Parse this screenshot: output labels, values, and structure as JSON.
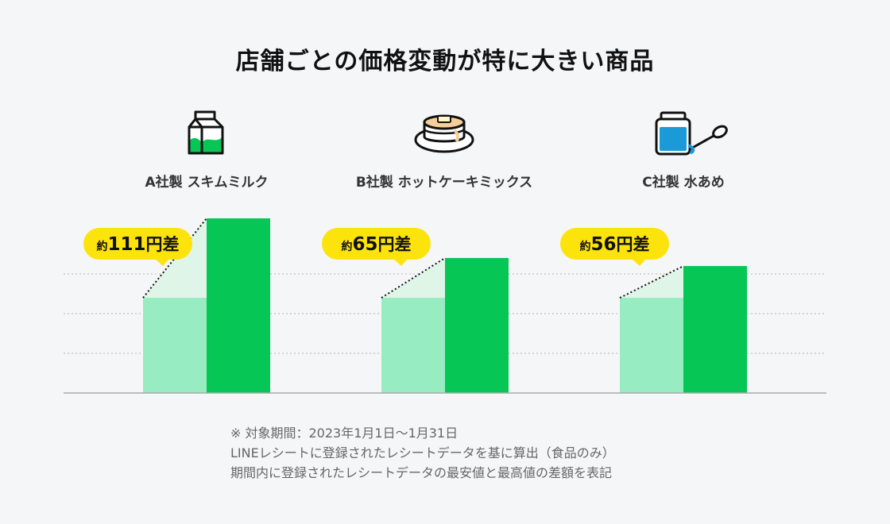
{
  "title": "店舗ごとの価格変動が特に大きい商品",
  "colors": {
    "bar_high": "#06c755",
    "bar_low": "#98ecc2",
    "diff_fill": "#dff5e8",
    "badge": "#fde30c",
    "axis": "#aaaaaa",
    "grid": "#b5b5b5"
  },
  "products": [
    {
      "label": "A社製 スキムミルク",
      "icon": "milk-carton-icon"
    },
    {
      "label": "B社製 ホットケーキミックス",
      "icon": "pancake-icon"
    },
    {
      "label": "C社製 水あめ",
      "icon": "syrup-jar-spoon-icon"
    }
  ],
  "chart_data": {
    "type": "bar",
    "title": "店舗ごとの価格変動が特に大きい商品",
    "categories": [
      "A社製 スキムミルク",
      "B社製 ホットケーキミックス",
      "C社製 水あめ"
    ],
    "series": [
      {
        "values": [
          0.545,
          0.545,
          0.545
        ]
      },
      {
        "values": [
          1.0,
          0.773,
          0.727
        ]
      }
    ],
    "annotations": [
      {
        "prefix": "約",
        "value": "111",
        "suffix": "円差"
      },
      {
        "prefix": "約",
        "value": "65",
        "suffix": "円差"
      },
      {
        "prefix": "約",
        "value": "56",
        "suffix": "円差"
      }
    ],
    "ylim": [
      0,
      1
    ],
    "grid": true,
    "xlabel": "",
    "ylabel": ""
  },
  "notes": [
    "※ 対象期間：2023年1月1日〜1月31日",
    "LINEレシートに登録されたレシートデータを基に算出（食品のみ）",
    "期間内に登録されたレシートデータの最安値と最高値の差額を表記"
  ]
}
